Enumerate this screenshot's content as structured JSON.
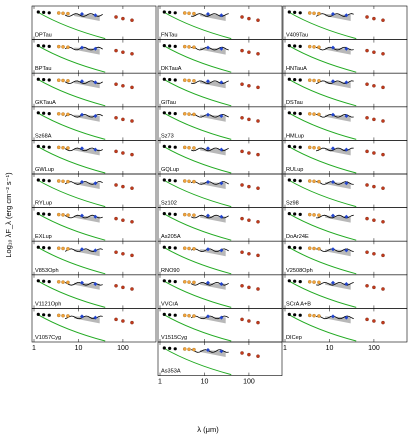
{
  "chart_data": {
    "type": "scatter",
    "xlabel": "λ (μm)",
    "ylabel": "Log₁₀ λF_λ (erg cm⁻² s⁻¹)",
    "x_scale": "log",
    "xlim": [
      1,
      500
    ],
    "x_ticks": [
      "1",
      "10",
      "100"
    ],
    "panels": [
      {
        "name": "DPTau"
      },
      {
        "name": "FNTau"
      },
      {
        "name": "V409Tau"
      },
      {
        "name": "BPTau"
      },
      {
        "name": "DKTauA"
      },
      {
        "name": "HNTauA"
      },
      {
        "name": "GKTauA"
      },
      {
        "name": "GITau"
      },
      {
        "name": "DSTau"
      },
      {
        "name": "Sz68A"
      },
      {
        "name": "Sz73"
      },
      {
        "name": "HMLup"
      },
      {
        "name": "GWLup"
      },
      {
        "name": "GQLup"
      },
      {
        "name": "RULup"
      },
      {
        "name": "RYLup"
      },
      {
        "name": "Sz102"
      },
      {
        "name": "Sz98"
      },
      {
        "name": "EXLup"
      },
      {
        "name": "As205A"
      },
      {
        "name": "DoAr24E"
      },
      {
        "name": "V853Oph"
      },
      {
        "name": "RNO90"
      },
      {
        "name": "V2508Oph"
      },
      {
        "name": "V1121Oph"
      },
      {
        "name": "VVCrA"
      },
      {
        "name": "SCrA A+B"
      },
      {
        "name": "V1057Cyg"
      },
      {
        "name": "V1515Cyg"
      },
      {
        "name": "DICep"
      },
      {
        "name": "As353A"
      }
    ]
  }
}
